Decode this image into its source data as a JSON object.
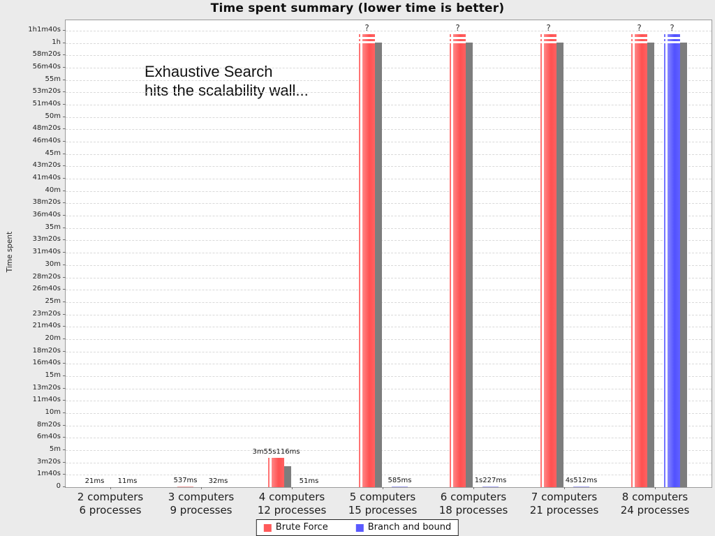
{
  "title": "Time spent summary (lower time is better)",
  "chart_data": {
    "type": "bar",
    "title": "Time spent summary (lower time is better)",
    "ylabel": "Time spent",
    "xlabel": "",
    "annotation_lines": [
      "Exhaustive Search",
      "hits the scalability wall..."
    ],
    "unknown_marker": "?",
    "grid": "horizontal-dashed",
    "legend_position": "bottom",
    "ylim_seconds": [
      0,
      3783
    ],
    "y_tick_step_seconds": 100,
    "y_tick_labels": [
      "0",
      "1m40s",
      "3m20s",
      "5m",
      "6m40s",
      "8m20s",
      "10m",
      "11m40s",
      "13m20s",
      "15m",
      "16m40s",
      "18m20s",
      "20m",
      "21m40s",
      "23m20s",
      "25m",
      "26m40s",
      "28m20s",
      "30m",
      "31m40s",
      "33m20s",
      "35m",
      "36m40s",
      "38m20s",
      "40m",
      "41m40s",
      "43m20s",
      "45m",
      "46m40s",
      "48m20s",
      "50m",
      "51m40s",
      "53m20s",
      "55m",
      "56m40s",
      "58m20s",
      "1h",
      "1h1m40s"
    ],
    "categories": [
      {
        "line1": "2 computers",
        "line2": "6 processes"
      },
      {
        "line1": "3 computers",
        "line2": "9 processes"
      },
      {
        "line1": "4 computers",
        "line2": "12 processes"
      },
      {
        "line1": "5 computers",
        "line2": "15 processes"
      },
      {
        "line1": "6 computers",
        "line2": "18 processes"
      },
      {
        "line1": "7 computers",
        "line2": "21 processes"
      },
      {
        "line1": "8 computers",
        "line2": "24 processes"
      }
    ],
    "series": [
      {
        "name": "Brute Force",
        "color": "#ff5a5a",
        "values": [
          "21ms",
          "537ms",
          "3m55s116ms",
          "?",
          "?",
          "?",
          "?"
        ],
        "values_seconds": [
          0.021,
          0.537,
          235.116,
          null,
          null,
          null,
          null
        ]
      },
      {
        "name": "Branch and bound",
        "color": "#5a5aff",
        "values": [
          "11ms",
          "32ms",
          "51ms",
          "585ms",
          "1s227ms",
          "4s512ms",
          "?"
        ],
        "values_seconds": [
          0.011,
          0.032,
          0.051,
          0.585,
          1.227,
          4.512,
          null
        ]
      }
    ]
  },
  "colors": {
    "background": "#ebebeb",
    "plot_background": "#ffffff",
    "gridline": "#d9d9d9",
    "shadow": "#7d7d7d",
    "brute_force": "#ff5a5a",
    "branch_and_bound": "#5a5aff"
  }
}
